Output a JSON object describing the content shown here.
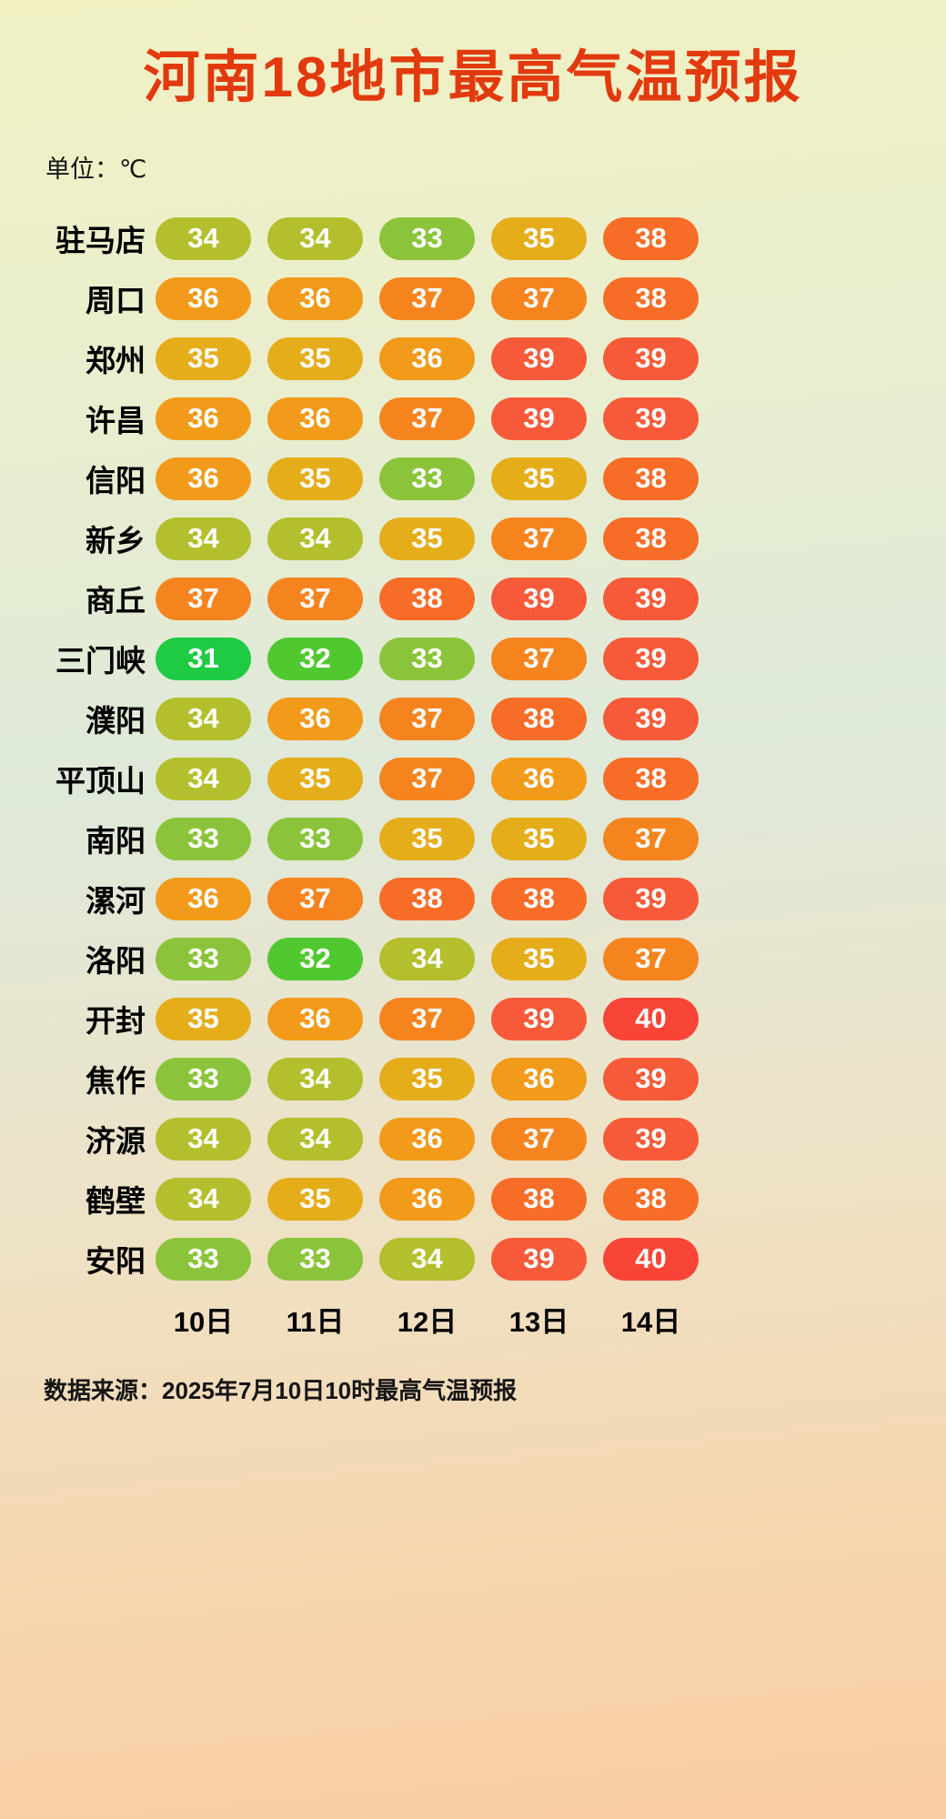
{
  "title": "河南18地市最高气温预报",
  "unit_label": "单位：℃",
  "footer": "数据来源：2025年7月10日10时最高气温预报",
  "accent_color": "#e23a0e",
  "chart_data": {
    "type": "heatmap",
    "title": "河南18地市最高气温预报",
    "unit": "℃",
    "columns": [
      "10日",
      "11日",
      "12日",
      "13日",
      "14日"
    ],
    "rows": [
      {
        "city": "驻马店",
        "values": [
          34,
          34,
          33,
          35,
          38
        ]
      },
      {
        "city": "周口",
        "values": [
          36,
          36,
          37,
          37,
          38
        ]
      },
      {
        "city": "郑州",
        "values": [
          35,
          35,
          36,
          39,
          39
        ]
      },
      {
        "city": "许昌",
        "values": [
          36,
          36,
          37,
          39,
          39
        ]
      },
      {
        "city": "信阳",
        "values": [
          36,
          35,
          33,
          35,
          38
        ]
      },
      {
        "city": "新乡",
        "values": [
          34,
          34,
          35,
          37,
          38
        ]
      },
      {
        "city": "商丘",
        "values": [
          37,
          37,
          38,
          39,
          39
        ]
      },
      {
        "city": "三门峡",
        "values": [
          31,
          32,
          33,
          37,
          39
        ]
      },
      {
        "city": "濮阳",
        "values": [
          34,
          36,
          37,
          38,
          39
        ]
      },
      {
        "city": "平顶山",
        "values": [
          34,
          35,
          37,
          36,
          38
        ]
      },
      {
        "city": "南阳",
        "values": [
          33,
          33,
          35,
          35,
          37
        ]
      },
      {
        "city": "漯河",
        "values": [
          36,
          37,
          38,
          38,
          39
        ]
      },
      {
        "city": "洛阳",
        "values": [
          33,
          32,
          34,
          35,
          37
        ]
      },
      {
        "city": "开封",
        "values": [
          35,
          36,
          37,
          39,
          40
        ]
      },
      {
        "city": "焦作",
        "values": [
          33,
          34,
          35,
          36,
          39
        ]
      },
      {
        "city": "济源",
        "values": [
          34,
          34,
          36,
          37,
          39
        ]
      },
      {
        "city": "鹤壁",
        "values": [
          34,
          35,
          36,
          38,
          38
        ]
      },
      {
        "city": "安阳",
        "values": [
          33,
          33,
          34,
          39,
          40
        ]
      }
    ],
    "colors": {
      "31": "#1ecb43",
      "32": "#50c930",
      "33": "#8bc43a",
      "34": "#b3bf2c",
      "35": "#e6ad1b",
      "36": "#f29a19",
      "37": "#f5841f",
      "38": "#f76d27",
      "39": "#f75a38",
      "40": "#f94537"
    },
    "legend_position": "none",
    "grid": false
  }
}
